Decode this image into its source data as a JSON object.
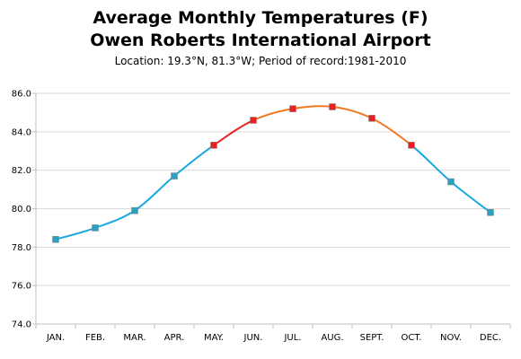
{
  "chart_data": {
    "type": "line",
    "title": "Average Monthly Temperatures (F)",
    "title_line2": "Owen Roberts International Airport",
    "subtitle": "Location: 19.3°N, 81.3°W; Period of record:1981-2010",
    "xlabel": "",
    "ylabel": "",
    "categories": [
      "JAN.",
      "FEB.",
      "MAR.",
      "APR.",
      "MAY.",
      "JUN.",
      "JUL.",
      "AUG.",
      "SEPT.",
      "OCT.",
      "NOV.",
      "DEC."
    ],
    "values": [
      78.4,
      79.0,
      79.9,
      81.7,
      83.3,
      84.6,
      85.2,
      85.3,
      84.7,
      83.3,
      81.4,
      79.8
    ],
    "ylim": [
      74.0,
      86.0
    ],
    "yticks": [
      74.0,
      76.0,
      78.0,
      80.0,
      82.0,
      84.0,
      86.0
    ],
    "grid": "horizontal",
    "legend": "none",
    "colors": {
      "cool_line": "#1aa8e0",
      "cool_marker": "#2ca0c0",
      "warm_line": "#f07820",
      "hot_line": "#e82020",
      "warm_marker": "#e82020",
      "gridline": "#d9d9d9",
      "axis": "#bfbfbf"
    },
    "segment_colors": [
      "cool",
      "cool",
      "cool",
      "cool",
      "hot",
      "warm",
      "warm",
      "warm",
      "warm",
      "cool",
      "cool"
    ],
    "marker_colors": [
      "cool",
      "cool",
      "cool",
      "cool",
      "warm",
      "warm",
      "warm",
      "warm",
      "warm",
      "warm",
      "cool",
      "cool"
    ]
  }
}
